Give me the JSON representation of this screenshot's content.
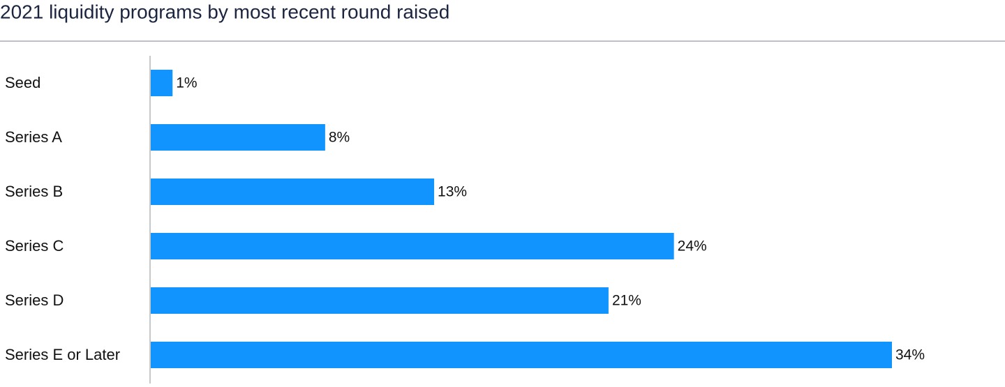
{
  "chart_data": {
    "type": "bar",
    "orientation": "horizontal",
    "title": "2021 liquidity programs by most recent round raised",
    "categories": [
      "Seed",
      "Series A",
      "Series B",
      "Series C",
      "Series D",
      "Series E or Later"
    ],
    "values": [
      1,
      8,
      13,
      24,
      21,
      34
    ],
    "value_labels": [
      "1%",
      "8%",
      "13%",
      "24%",
      "21%",
      "34%"
    ],
    "color": "#1294ff"
  }
}
